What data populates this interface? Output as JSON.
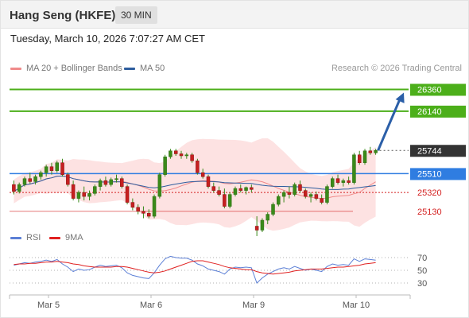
{
  "header": {
    "title": "Hang Seng (HKFE)",
    "timeframe": "30 MIN"
  },
  "datetime": "Tuesday, March 10, 2026 7:07:27 AM CET",
  "legend": {
    "ma20_label": "MA 20 + Bollinger Bands",
    "ma50_label": "MA 50",
    "ma20_color": "#f08a8a",
    "ma50_color": "#2e5d9e",
    "credit": "Research © 2026 Trading Central"
  },
  "rsi_legend": {
    "rsi_label": "RSI",
    "ma_label": "9MA",
    "rsi_color": "#5b7fd6",
    "ma_color": "#e02020"
  },
  "chart_data": {
    "type": "candlestick",
    "x_ticks": [
      "Mar 5",
      "Mar 6",
      "Mar 9",
      "Mar 10"
    ],
    "ylim": [
      25000,
      26460
    ],
    "levels": [
      {
        "label": "26360",
        "value": 26360,
        "kind": "resistance",
        "color": "#4caf1a"
      },
      {
        "label": "26140",
        "value": 26140,
        "kind": "resistance",
        "color": "#4caf1a"
      },
      {
        "label": "25744",
        "value": 25744,
        "kind": "last",
        "color": "#333333"
      },
      {
        "label": "25510",
        "value": 25510,
        "kind": "pivot",
        "color": "#2f7de1"
      },
      {
        "label": "25320",
        "value": 25320,
        "kind": "support",
        "color": "#d42020"
      },
      {
        "label": "25130",
        "value": 25130,
        "kind": "support",
        "color": "#d42020"
      }
    ],
    "target": 26360,
    "candles": [
      [
        25400,
        25440,
        25300,
        25330
      ],
      [
        25330,
        25420,
        25310,
        25400
      ],
      [
        25400,
        25480,
        25380,
        25460
      ],
      [
        25460,
        25520,
        25410,
        25430
      ],
      [
        25430,
        25500,
        25400,
        25480
      ],
      [
        25480,
        25540,
        25450,
        25520
      ],
      [
        25520,
        25600,
        25480,
        25580
      ],
      [
        25580,
        25620,
        25500,
        25540
      ],
      [
        25540,
        25640,
        25520,
        25620
      ],
      [
        25620,
        25660,
        25480,
        25500
      ],
      [
        25500,
        25520,
        25380,
        25400
      ],
      [
        25400,
        25440,
        25240,
        25260
      ],
      [
        25260,
        25340,
        25220,
        25320
      ],
      [
        25320,
        25380,
        25240,
        25280
      ],
      [
        25280,
        25340,
        25240,
        25310
      ],
      [
        25310,
        25400,
        25290,
        25380
      ],
      [
        25380,
        25460,
        25340,
        25440
      ],
      [
        25440,
        25480,
        25380,
        25400
      ],
      [
        25400,
        25470,
        25380,
        25450
      ],
      [
        25450,
        25500,
        25420,
        25460
      ],
      [
        25460,
        25480,
        25360,
        25380
      ],
      [
        25380,
        25400,
        25200,
        25220
      ],
      [
        25220,
        25260,
        25140,
        25170
      ],
      [
        25170,
        25200,
        25100,
        25130
      ],
      [
        25130,
        25180,
        25060,
        25110
      ],
      [
        25110,
        25150,
        25060,
        25080
      ],
      [
        25080,
        25300,
        25060,
        25280
      ],
      [
        25280,
        25520,
        25260,
        25500
      ],
      [
        25500,
        25700,
        25480,
        25680
      ],
      [
        25680,
        25760,
        25660,
        25740
      ],
      [
        25740,
        25760,
        25690,
        25710
      ],
      [
        25710,
        25740,
        25660,
        25690
      ],
      [
        25690,
        25720,
        25660,
        25700
      ],
      [
        25700,
        25720,
        25620,
        25640
      ],
      [
        25640,
        25660,
        25500,
        25520
      ],
      [
        25520,
        25560,
        25460,
        25480
      ],
      [
        25480,
        25500,
        25360,
        25380
      ],
      [
        25380,
        25420,
        25320,
        25340
      ],
      [
        25340,
        25380,
        25280,
        25300
      ],
      [
        25300,
        25360,
        25160,
        25180
      ],
      [
        25180,
        25320,
        25160,
        25300
      ],
      [
        25300,
        25380,
        25280,
        25360
      ],
      [
        25360,
        25400,
        25320,
        25340
      ],
      [
        25340,
        25380,
        25300,
        25370
      ],
      [
        25370,
        25400,
        25320,
        25350
      ],
      [
        24980,
        25080,
        24880,
        24940
      ],
      [
        24940,
        25060,
        24920,
        25040
      ],
      [
        25040,
        25120,
        25000,
        25100
      ],
      [
        25100,
        25220,
        25080,
        25200
      ],
      [
        25200,
        25300,
        25180,
        25280
      ],
      [
        25280,
        25340,
        25220,
        25320
      ],
      [
        25320,
        25380,
        25260,
        25300
      ],
      [
        25300,
        25420,
        25280,
        25400
      ],
      [
        25400,
        25440,
        25320,
        25340
      ],
      [
        25340,
        25360,
        25260,
        25280
      ],
      [
        25280,
        25320,
        25220,
        25300
      ],
      [
        25300,
        25330,
        25240,
        25260
      ],
      [
        25260,
        25300,
        25200,
        25220
      ],
      [
        25220,
        25400,
        25200,
        25380
      ],
      [
        25380,
        25480,
        25360,
        25460
      ],
      [
        25460,
        25500,
        25400,
        25420
      ],
      [
        25420,
        25460,
        25380,
        25440
      ],
      [
        25440,
        25480,
        25400,
        25420
      ],
      [
        25420,
        25720,
        25400,
        25700
      ],
      [
        25700,
        25740,
        25600,
        25620
      ],
      [
        25620,
        25760,
        25600,
        25740
      ],
      [
        25740,
        25780,
        25700,
        25720
      ],
      [
        25720,
        25760,
        25700,
        25744
      ]
    ],
    "rsi_ticks": [
      70,
      50,
      30
    ],
    "rsi_ylim": [
      20,
      80
    ],
    "rsi_values": [
      58,
      60,
      62,
      61,
      63,
      64,
      66,
      64,
      67,
      60,
      55,
      48,
      52,
      50,
      51,
      55,
      58,
      56,
      57,
      58,
      54,
      46,
      42,
      40,
      38,
      37,
      46,
      58,
      68,
      72,
      70,
      69,
      69,
      66,
      60,
      57,
      52,
      50,
      48,
      44,
      52,
      55,
      54,
      55,
      54,
      30,
      38,
      44,
      48,
      52,
      54,
      52,
      56,
      53,
      50,
      52,
      50,
      48,
      56,
      60,
      58,
      59,
      58,
      68,
      64,
      68,
      67,
      66
    ],
    "rsi_ma": [
      59,
      60,
      60,
      61,
      61,
      62,
      63,
      63,
      64,
      63,
      62,
      60,
      59,
      57,
      56,
      55,
      55,
      55,
      55,
      56,
      56,
      55,
      53,
      51,
      49,
      47,
      46,
      47,
      49,
      52,
      55,
      58,
      61,
      64,
      65,
      65,
      63,
      61,
      59,
      56,
      54,
      53,
      52,
      51,
      51,
      48,
      46,
      45,
      44,
      45,
      46,
      47,
      49,
      50,
      51,
      52,
      52,
      52,
      53,
      54,
      55,
      55,
      56,
      57,
      58,
      60,
      61,
      62
    ]
  }
}
